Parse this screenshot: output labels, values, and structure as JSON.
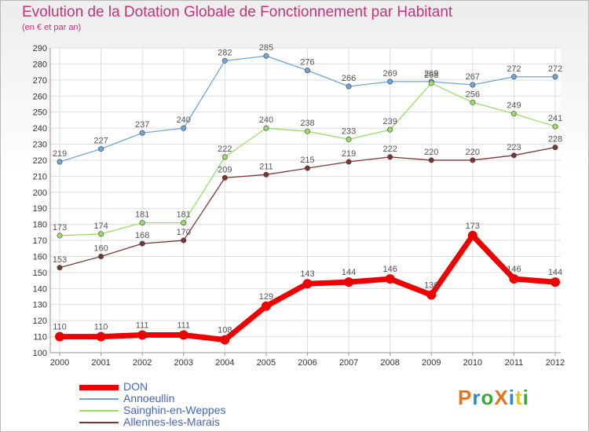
{
  "header": {
    "title": "Evolution de la Dotation Globale de Fonctionnement par Habitant",
    "subtitle": "(en € et par an)"
  },
  "logo": {
    "text": "ProXiti",
    "colors": [
      "#e8731d",
      "#2d87c8",
      "#3aa83a",
      "#e8731d",
      "#2d87c8",
      "#e8c21d",
      "#3aa83a"
    ]
  },
  "chart_data": {
    "type": "line",
    "title": "Evolution de la Dotation Globale de Fonctionnement par Habitant",
    "subtitle": "(en € et par an)",
    "xlabel": "",
    "ylabel": "",
    "ylim": [
      100,
      290
    ],
    "y_ticks": [
      100,
      110,
      120,
      130,
      140,
      150,
      160,
      170,
      180,
      190,
      200,
      210,
      220,
      230,
      240,
      250,
      260,
      270,
      280,
      290
    ],
    "categories": [
      "2000",
      "2001",
      "2002",
      "2003",
      "2004",
      "2005",
      "2006",
      "2007",
      "2008",
      "2009",
      "2010",
      "2011",
      "2012"
    ],
    "grid": true,
    "legend_position": "bottom-left",
    "series": [
      {
        "name": "DON",
        "color": "#ee0000",
        "values": [
          110,
          110,
          111,
          111,
          108,
          129,
          143,
          144,
          146,
          136,
          173,
          146,
          144
        ]
      },
      {
        "name": "Annoeullin",
        "color": "#6fa5d8",
        "values": [
          219,
          227,
          237,
          240,
          282,
          285,
          276,
          266,
          269,
          269,
          267,
          272,
          272
        ]
      },
      {
        "name": "Sainghin-en-Weppes",
        "color": "#99dd66",
        "values": [
          173,
          174,
          181,
          181,
          222,
          240,
          238,
          233,
          239,
          268,
          256,
          249,
          241
        ]
      },
      {
        "name": "Allennes-les-Marais",
        "color": "#7a3535",
        "values": [
          153,
          160,
          168,
          170,
          209,
          211,
          215,
          219,
          222,
          220,
          220,
          223,
          228
        ]
      }
    ]
  }
}
